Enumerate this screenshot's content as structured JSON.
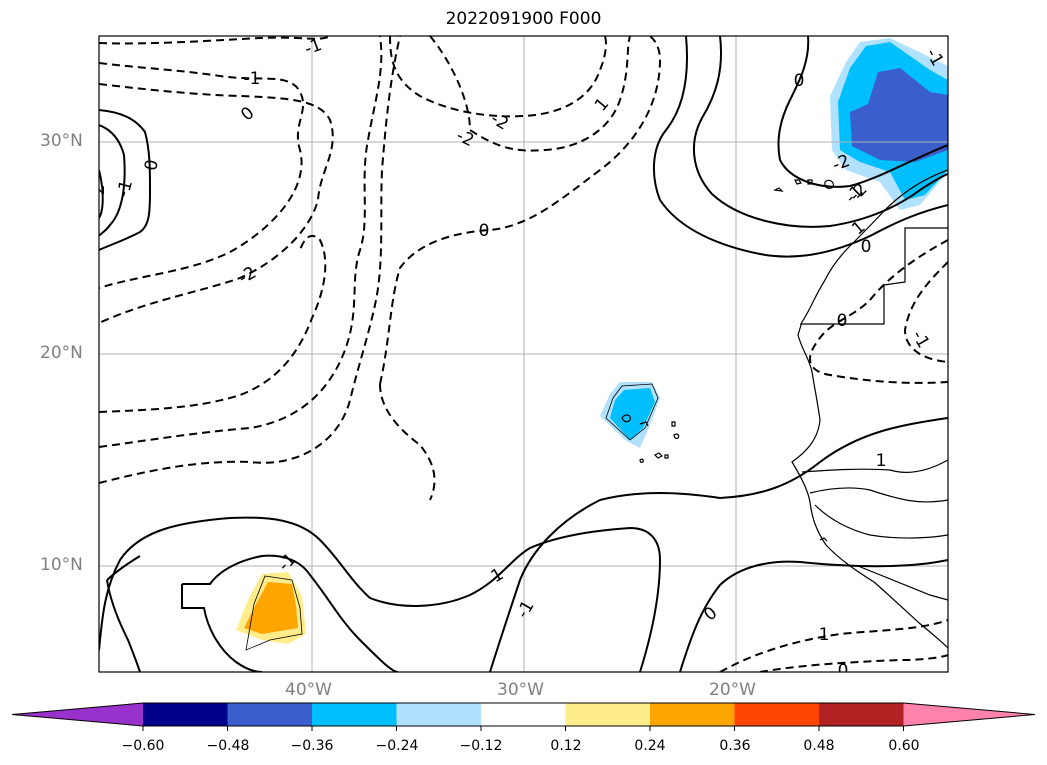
{
  "title": "2022091900 F000",
  "lat_labels": [
    "30°N",
    "20°N",
    "10°N"
  ],
  "lon_labels": [
    "40°W",
    "30°W",
    "20°W"
  ],
  "contour_labels": [
    "-1",
    "-1",
    "0",
    "-2",
    "-2",
    "2",
    "-1",
    "1",
    "0",
    "0",
    "-2",
    "0",
    "-2",
    "-1",
    "-2",
    "-1",
    "1",
    "0",
    "0",
    "-1",
    "1",
    "-1",
    "1",
    "-1",
    "0",
    "1",
    "0",
    "-1",
    "0",
    "-1"
  ],
  "colorbar": {
    "ticks": [
      "−0.60",
      "−0.48",
      "−0.36",
      "−0.24",
      "−0.12",
      "0.12",
      "0.24",
      "0.36",
      "0.48",
      "0.60"
    ],
    "colors": [
      "#9932CC",
      "#00008B",
      "#3A5FCD",
      "#00BFFF",
      "#B0E2FF",
      "#FFFFFF",
      "#FFEC8B",
      "#FFA500",
      "#FF4500",
      "#B22222",
      "#FF82AB"
    ]
  },
  "fill_colors": {
    "light_blue": "#B0E2FF",
    "blue": "#00BFFF",
    "dark_blue": "#3A5FCD",
    "light_yellow": "#FFEC8B",
    "orange": "#FFA500"
  }
}
